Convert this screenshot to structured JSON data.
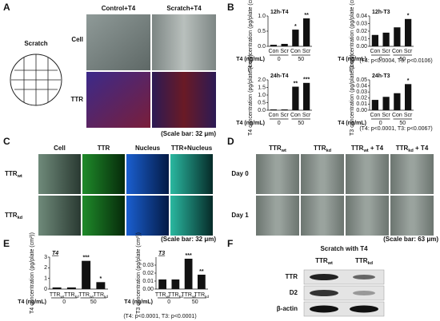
{
  "panel_labels": [
    "A",
    "B",
    "C",
    "D",
    "E",
    "F"
  ],
  "panel_a": {
    "diagram_label": "Scratch",
    "columns": [
      "Control+T4",
      "Scratch+T4"
    ],
    "rows": [
      "Cell",
      "TTR"
    ],
    "scale_note": "(Scale bar: 32 μm)"
  },
  "panel_b": {
    "notes": [
      "(T4: p<0.0004, T3: p<0.0106)",
      "(T4: p<0.0001, T3: p<0.0067)"
    ]
  },
  "panel_c": {
    "columns": [
      "Cell",
      "TTR",
      "Nucleus",
      "TTR+Nucleus"
    ],
    "rows": [
      {
        "text": "TTR",
        "sub": "wt"
      },
      {
        "text": "TTR",
        "sub": "kd"
      }
    ],
    "scale_note": "(Scale bar: 32 μm)"
  },
  "panel_d": {
    "columns": [
      {
        "text": "TTR",
        "sub": "wt"
      },
      {
        "text": "TTR",
        "sub": "kd"
      },
      {
        "text": "TTR",
        "sub": "wt",
        "suffix": " + T4"
      },
      {
        "text": "TTR",
        "sub": "kd",
        "suffix": " + T4"
      }
    ],
    "rows": [
      "Day 0",
      "Day 1"
    ],
    "scale_note": "(Scale bar: 63 μm)"
  },
  "panel_e": {
    "note": "(T4: p<0.0001, T3: p<0.0001)"
  },
  "panel_f": {
    "title": "Scratch with T4",
    "lanes": [
      {
        "text": "TTR",
        "sub": "wt"
      },
      {
        "text": "TTR",
        "sub": "kd"
      }
    ],
    "rows": [
      "TTR",
      "D2",
      "β-actin"
    ]
  },
  "chart_data": [
    {
      "type": "bar",
      "title": "12h-T4",
      "y_label": "T4 concentration (pg/plate (cm²))",
      "x_group_title": "T4 (ng/mL)",
      "groups": [
        "0",
        "50"
      ],
      "categories": [
        "Con",
        "Scr",
        "Con",
        "Scr"
      ],
      "values": [
        0.05,
        0.08,
        0.55,
        0.92
      ],
      "stars": [
        null,
        null,
        "*",
        "**"
      ],
      "color": "#111111",
      "ylim": [
        0,
        1
      ],
      "yticks": [
        {
          "value": 0,
          "label": "0.0"
        },
        0.5,
        {
          "value": 1,
          "label": "1.0"
        }
      ]
    },
    {
      "type": "bar",
      "title": "12h-T3",
      "y_label": "T3 concentration (pg/plate (cm²))",
      "x_group_title": "T4 (ng/mL)",
      "groups": [
        "0",
        "50"
      ],
      "categories": [
        "Con",
        "Scr",
        "Con",
        "Scr"
      ],
      "values": [
        0.015,
        0.018,
        0.025,
        0.036
      ],
      "stars": [
        null,
        null,
        null,
        "*"
      ],
      "color": "#111111",
      "ylim": [
        0,
        0.04
      ],
      "yticks": [
        {
          "value": 0,
          "label": "0.00"
        },
        0.01,
        0.02,
        0.03,
        0.04
      ]
    },
    {
      "type": "bar",
      "title": "24h-T4",
      "y_label": "T4 concentration (pg/plate (cm²))",
      "x_group_title": "T4 (ng/mL)",
      "groups": [
        "0",
        "50"
      ],
      "categories": [
        "Con",
        "Scr",
        "Con",
        "Scr"
      ],
      "values": [
        0.05,
        0.05,
        1.55,
        1.8
      ],
      "stars": [
        null,
        null,
        "**",
        "***"
      ],
      "color": "#111111",
      "ylim": [
        0,
        2
      ],
      "yticks": [
        {
          "value": 0,
          "label": "0.0"
        },
        0.5,
        {
          "value": 1,
          "label": "1.0"
        },
        1.5,
        {
          "value": 2,
          "label": "2.0"
        }
      ]
    },
    {
      "type": "bar",
      "title": "24h-T3",
      "y_label": "T3 concentration (pg/plate (cm²))",
      "x_group_title": "T4 (ng/mL)",
      "groups": [
        "0",
        "50"
      ],
      "categories": [
        "Con",
        "Scr",
        "Con",
        "Scr"
      ],
      "values": [
        0.017,
        0.022,
        0.028,
        0.043
      ],
      "stars": [
        null,
        null,
        null,
        "*"
      ],
      "color": "#111111",
      "ylim": [
        0,
        0.05
      ],
      "yticks": [
        {
          "value": 0,
          "label": "0.00"
        },
        0.01,
        0.02,
        0.03,
        0.04,
        0.05
      ]
    },
    {
      "type": "bar",
      "title": "T4",
      "y_label": "T4 concentration (pg/plate (cm²))",
      "x_group_title": "T4 (ng/mL)",
      "groups": [
        "0",
        "50"
      ],
      "categories": [
        {
          "text": "TTR",
          "sub": "wt"
        },
        {
          "text": "TTR",
          "sub": "kd"
        },
        {
          "text": "TTR",
          "sub": "wt"
        },
        {
          "text": "TTR",
          "sub": "kd"
        }
      ],
      "values": [
        0.15,
        0.15,
        2.65,
        0.65
      ],
      "stars": [
        null,
        null,
        "***",
        "*"
      ],
      "color": "#111111",
      "ylim": [
        0,
        3
      ],
      "yticks": [
        0,
        1,
        2,
        3
      ]
    },
    {
      "type": "bar",
      "title": "T3",
      "y_label": "T3 concentration (pg/plate (cm²))",
      "x_group_title": "T4 (ng/mL)",
      "groups": [
        "0",
        "50"
      ],
      "categories": [
        {
          "text": "TTR",
          "sub": "wt"
        },
        {
          "text": "TTR",
          "sub": "kd"
        },
        {
          "text": "TTR",
          "sub": "wt"
        },
        {
          "text": "TTR",
          "sub": "kd"
        }
      ],
      "values": [
        0.012,
        0.012,
        0.038,
        0.018
      ],
      "stars": [
        null,
        null,
        "***",
        "**"
      ],
      "color": "#111111",
      "ylim": [
        0,
        0.04
      ],
      "yticks": [
        {
          "value": 0,
          "label": "0.00"
        },
        0.01,
        0.02,
        0.03
      ]
    }
  ]
}
